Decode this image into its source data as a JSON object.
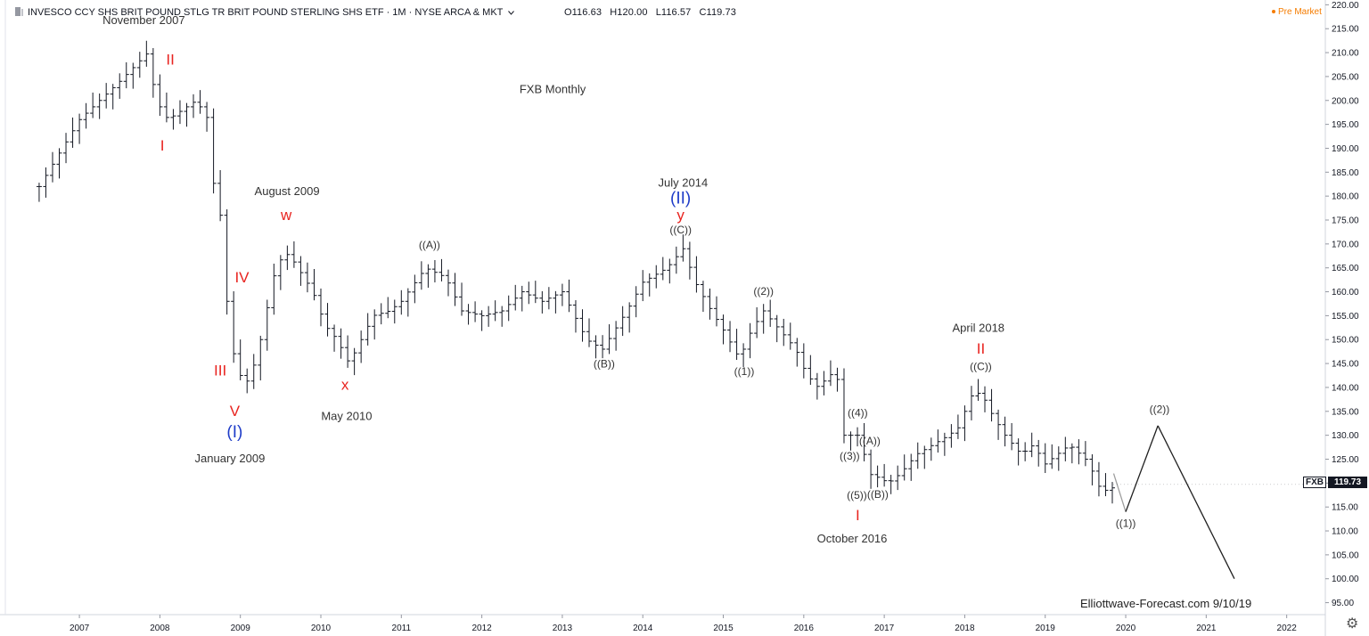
{
  "header": {
    "symbol_line": "INVESCO CCY SHS BRIT POUND STLG TR BRIT POUND STERLING SHS ETF · 1M · NYSE ARCA & MKT",
    "open": "O116.63",
    "high": "H120.00",
    "low": "L116.57",
    "close": "C119.73",
    "pre_market": "Pre Market"
  },
  "price_tag": {
    "symbol": "FXB",
    "value": "119.73"
  },
  "icons": {
    "logo": "logo-icon",
    "dropdown": "chevron-down-icon",
    "settings": "gear-icon"
  },
  "colors": {
    "bars": "#131722",
    "wave_red": "#e8231f",
    "wave_blue": "#1e3cc8",
    "annotation": "#333333",
    "pre_market": "#f57c00"
  },
  "chart_data": {
    "type": "ohlc",
    "title": "FXB Monthly",
    "watermark": "Elliottwave-Forecast.com  9/10/19",
    "x_ticks": [
      "2007",
      "2008",
      "2009",
      "2010",
      "2011",
      "2012",
      "2013",
      "2014",
      "2015",
      "2016",
      "2017",
      "2018",
      "2019",
      "2020",
      "2021",
      "2022"
    ],
    "y_ticks": [
      "95.00",
      "100.00",
      "105.00",
      "110.00",
      "115.00",
      "120.00",
      "125.00",
      "130.00",
      "135.00",
      "140.00",
      "145.00",
      "150.00",
      "155.00",
      "160.00",
      "165.00",
      "170.00",
      "175.00",
      "180.00",
      "185.00",
      "190.00",
      "195.00",
      "200.00",
      "205.00",
      "210.00",
      "215.00",
      "220.00"
    ],
    "ylim": [
      92.5,
      221
    ],
    "xlim": [
      2006.08,
      2022.48
    ],
    "grid": false,
    "anchors": [
      [
        2006.5,
        182
      ],
      [
        2007.0,
        196
      ],
      [
        2007.5,
        204
      ],
      [
        2007.85,
        210
      ],
      [
        2007.95,
        200
      ],
      [
        2008.1,
        196
      ],
      [
        2008.45,
        200
      ],
      [
        2008.6,
        196
      ],
      [
        2008.65,
        184
      ],
      [
        2008.75,
        176
      ],
      [
        2008.82,
        160
      ],
      [
        2008.9,
        148
      ],
      [
        2008.97,
        144
      ],
      [
        2009.05,
        140
      ],
      [
        2009.2,
        146
      ],
      [
        2009.35,
        158
      ],
      [
        2009.45,
        166
      ],
      [
        2009.6,
        168
      ],
      [
        2009.75,
        164
      ],
      [
        2009.9,
        160
      ],
      [
        2010.05,
        153
      ],
      [
        2010.2,
        150
      ],
      [
        2010.35,
        145
      ],
      [
        2010.5,
        150
      ],
      [
        2010.65,
        155
      ],
      [
        2010.85,
        156
      ],
      [
        2011.0,
        158
      ],
      [
        2011.3,
        165
      ],
      [
        2011.55,
        163
      ],
      [
        2011.75,
        156
      ],
      [
        2012.0,
        155
      ],
      [
        2012.25,
        156
      ],
      [
        2012.5,
        160
      ],
      [
        2012.75,
        158
      ],
      [
        2013.0,
        160
      ],
      [
        2013.15,
        155
      ],
      [
        2013.3,
        150
      ],
      [
        2013.5,
        148
      ],
      [
        2013.65,
        152
      ],
      [
        2013.8,
        156
      ],
      [
        2014.0,
        162
      ],
      [
        2014.3,
        165
      ],
      [
        2014.5,
        169
      ],
      [
        2014.65,
        162
      ],
      [
        2014.85,
        156
      ],
      [
        2015.0,
        152
      ],
      [
        2015.2,
        146
      ],
      [
        2015.35,
        152
      ],
      [
        2015.5,
        156
      ],
      [
        2015.7,
        152
      ],
      [
        2015.9,
        148
      ],
      [
        2016.0,
        144
      ],
      [
        2016.15,
        140
      ],
      [
        2016.3,
        142
      ],
      [
        2016.4,
        144
      ],
      [
        2016.5,
        130
      ],
      [
        2016.7,
        130
      ],
      [
        2016.8,
        122
      ],
      [
        2016.95,
        121
      ],
      [
        2017.05,
        120
      ],
      [
        2017.2,
        122
      ],
      [
        2017.4,
        126
      ],
      [
        2017.6,
        128
      ],
      [
        2017.8,
        130
      ],
      [
        2017.95,
        132
      ],
      [
        2018.05,
        138
      ],
      [
        2018.2,
        139
      ],
      [
        2018.35,
        134
      ],
      [
        2018.5,
        130
      ],
      [
        2018.7,
        126
      ],
      [
        2018.85,
        128
      ],
      [
        2019.0,
        124
      ],
      [
        2019.15,
        126
      ],
      [
        2019.3,
        128
      ],
      [
        2019.5,
        125
      ],
      [
        2019.6,
        122
      ],
      [
        2019.7,
        118
      ],
      [
        2019.8,
        119
      ]
    ],
    "projection": [
      [
        2019.85,
        122
      ],
      [
        2020.0,
        114
      ],
      [
        2020.4,
        132
      ],
      [
        2021.35,
        100
      ]
    ],
    "labels": [
      {
        "text": "November 2007",
        "x": 2007.8,
        "y": 216,
        "color": "annotation",
        "size": 13
      },
      {
        "text": "II",
        "x": 2008.13,
        "y": 207.5,
        "color": "wave_red",
        "size": 17
      },
      {
        "text": "I",
        "x": 2008.03,
        "y": 189.5,
        "color": "wave_red",
        "size": 17
      },
      {
        "text": "August 2009",
        "x": 2009.58,
        "y": 180.2,
        "color": "annotation",
        "size": 13
      },
      {
        "text": "w",
        "x": 2009.57,
        "y": 175,
        "color": "wave_red",
        "size": 17
      },
      {
        "text": "IV",
        "x": 2009.02,
        "y": 162,
        "color": "wave_red",
        "size": 17
      },
      {
        "text": "III",
        "x": 2008.75,
        "y": 142.5,
        "color": "wave_red",
        "size": 17
      },
      {
        "text": "V",
        "x": 2008.93,
        "y": 134,
        "color": "wave_red",
        "size": 17
      },
      {
        "text": "(I)",
        "x": 2008.93,
        "y": 129.6,
        "color": "wave_blue",
        "size": 19
      },
      {
        "text": "January 2009",
        "x": 2008.87,
        "y": 124.3,
        "color": "annotation",
        "size": 13
      },
      {
        "text": "x",
        "x": 2010.3,
        "y": 139.5,
        "color": "wave_red",
        "size": 17
      },
      {
        "text": "May 2010",
        "x": 2010.32,
        "y": 133.2,
        "color": "annotation",
        "size": 13
      },
      {
        "text": "((A))",
        "x": 2011.35,
        "y": 169,
        "color": "annotation",
        "size": 12
      },
      {
        "text": "FXB Monthly",
        "x": 2012.88,
        "y": 201.5,
        "color": "annotation",
        "size": 13
      },
      {
        "text": "((B))",
        "x": 2013.52,
        "y": 144.2,
        "color": "annotation",
        "size": 12
      },
      {
        "text": "July 2014",
        "x": 2014.5,
        "y": 182,
        "color": "annotation",
        "size": 13
      },
      {
        "text": "(II)",
        "x": 2014.47,
        "y": 178.4,
        "color": "wave_blue",
        "size": 19
      },
      {
        "text": "y",
        "x": 2014.47,
        "y": 175,
        "color": "wave_red",
        "size": 17
      },
      {
        "text": "((C))",
        "x": 2014.47,
        "y": 172.2,
        "color": "annotation",
        "size": 12
      },
      {
        "text": "((2))",
        "x": 2015.5,
        "y": 159.4,
        "color": "annotation",
        "size": 12
      },
      {
        "text": "((1))",
        "x": 2015.26,
        "y": 142.6,
        "color": "annotation",
        "size": 12
      },
      {
        "text": "((4))",
        "x": 2016.67,
        "y": 133.9,
        "color": "annotation",
        "size": 12
      },
      {
        "text": "((A))",
        "x": 2016.82,
        "y": 128.1,
        "color": "annotation",
        "size": 12
      },
      {
        "text": "((3))",
        "x": 2016.57,
        "y": 124.9,
        "color": "annotation",
        "size": 12
      },
      {
        "text": "((5))",
        "x": 2016.66,
        "y": 116.7,
        "color": "annotation",
        "size": 12
      },
      {
        "text": "((B))",
        "x": 2016.92,
        "y": 116.9,
        "color": "annotation",
        "size": 12
      },
      {
        "text": "I",
        "x": 2016.67,
        "y": 112.2,
        "color": "wave_red",
        "size": 17
      },
      {
        "text": "October 2016",
        "x": 2016.6,
        "y": 107.6,
        "color": "annotation",
        "size": 13
      },
      {
        "text": "April 2018",
        "x": 2018.17,
        "y": 151.6,
        "color": "annotation",
        "size": 13
      },
      {
        "text": "II",
        "x": 2018.2,
        "y": 147.1,
        "color": "wave_red",
        "size": 17
      },
      {
        "text": "((C))",
        "x": 2018.2,
        "y": 143.6,
        "color": "annotation",
        "size": 12
      },
      {
        "text": "((1))",
        "x": 2020.0,
        "y": 110.8,
        "color": "annotation",
        "size": 12
      },
      {
        "text": "((2))",
        "x": 2020.42,
        "y": 134.7,
        "color": "annotation",
        "size": 12
      }
    ]
  }
}
